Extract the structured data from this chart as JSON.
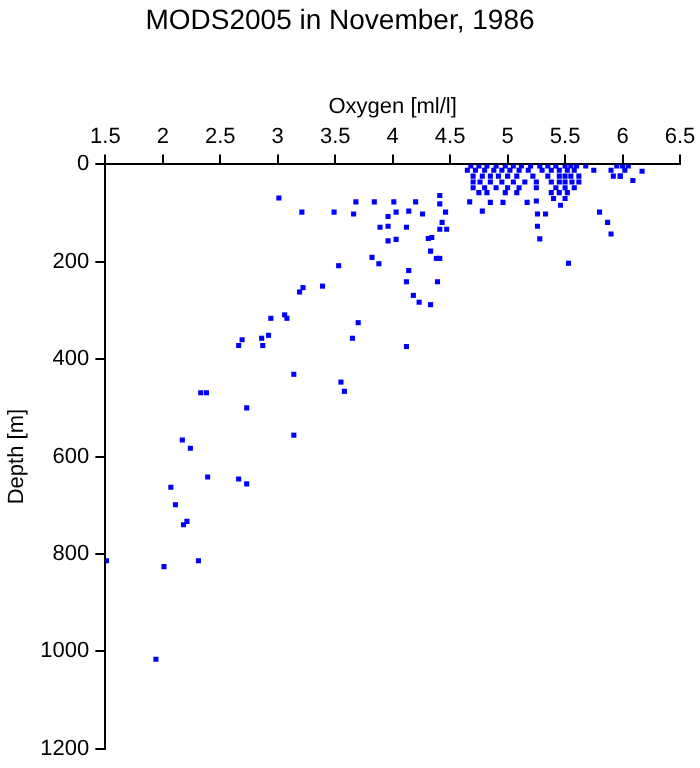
{
  "chart_data": {
    "type": "scatter",
    "title": "MODS2005 in November, 1986",
    "xlabel": "Oxygen [ml/l]",
    "ylabel": "Depth [m]",
    "xlim": [
      1.5,
      6.5
    ],
    "xticks": [
      1.5,
      2,
      2.5,
      3,
      3.5,
      4,
      4.5,
      5,
      5.5,
      6,
      6.5
    ],
    "ylim": [
      1200,
      0
    ],
    "yticks": [
      0,
      200,
      400,
      600,
      800,
      1000,
      1200
    ],
    "grid": false,
    "marker": "square",
    "legend": false,
    "series": [
      {
        "color": "#0000ff",
        "x": [
          3.01,
          3.21,
          3.49,
          3.53,
          3.39,
          3.22,
          3.19,
          2.94,
          3.06,
          3.08,
          2.92,
          2.86,
          2.69,
          2.66,
          2.87,
          3.14,
          3.55,
          3.58,
          2.33,
          2.38,
          2.73,
          3.14,
          2.17,
          2.24,
          2.07,
          2.11,
          2.39,
          2.66,
          2.73,
          2.18,
          2.21,
          2.31,
          2.01,
          1.51,
          1.94,
          3.68,
          3.84,
          4.01,
          4.2,
          3.66,
          3.96,
          4.03,
          4.14,
          4.26,
          3.89,
          3.96,
          4.12,
          4.41,
          4.41,
          4.43,
          4.46,
          4.47,
          4.41,
          4.34,
          4.31,
          3.96,
          4.03,
          4.33,
          3.82,
          3.88,
          4.38,
          4.41,
          4.14,
          4.12,
          4.18,
          4.23,
          4.33,
          4.39,
          3.7,
          3.65,
          4.12,
          5.26,
          5.33,
          5.26,
          5.28,
          5.53,
          5.8,
          5.87,
          5.9,
          5.46,
          4.85,
          4.78,
          4.67,
          4.96,
          5.17,
          5.25,
          6.09,
          6.17,
          5.98,
          4.68,
          4.75,
          4.82,
          4.9,
          4.98,
          5.05,
          5.12,
          5.2,
          5.28,
          5.35,
          5.42,
          5.5,
          5.55,
          5.6,
          5.68,
          5.95,
          6.0,
          6.05,
          4.65,
          4.72,
          4.8,
          4.88,
          4.95,
          5.02,
          5.1,
          5.18,
          5.3,
          5.38,
          5.45,
          5.52,
          5.58,
          5.75,
          5.9,
          6.02,
          4.7,
          4.78,
          4.85,
          4.92,
          5.0,
          5.08,
          5.22,
          5.35,
          5.45,
          5.5,
          5.55,
          5.62,
          5.92,
          5.98,
          4.7,
          4.76,
          4.85,
          4.95,
          5.05,
          5.15,
          5.25,
          5.38,
          5.45,
          5.5,
          5.56,
          5.62,
          4.7,
          4.8,
          4.9,
          5.0,
          5.1,
          5.25,
          5.42,
          5.5,
          5.58,
          4.75,
          4.82,
          4.98,
          5.08,
          5.38,
          5.45,
          5.52,
          5.4,
          5.5
        ],
        "values": [
          69,
          98,
          98,
          208,
          250,
          253,
          262,
          316,
          309,
          316,
          351,
          357,
          360,
          372,
          372,
          431,
          447,
          466,
          469,
          469,
          500,
          556,
          566,
          583,
          663,
          699,
          642,
          646,
          656,
          740,
          733,
          814,
          826,
          814,
          1016,
          77,
          77,
          77,
          77,
          102,
          107,
          98,
          96,
          102,
          129,
          127,
          129,
          64,
          81,
          119,
          98,
          133,
          133,
          150,
          152,
          157,
          154,
          178,
          191,
          204,
          193,
          193,
          218,
          241,
          269,
          283,
          288,
          241,
          325,
          357,
          374,
          102,
          102,
          127,
          153,
          203,
          98,
          119,
          143,
          84,
          78,
          96,
          77,
          78,
          78,
          75,
          33,
          14,
          24,
          3,
          3,
          3,
          3,
          3,
          3,
          3,
          3,
          3,
          3,
          3,
          3,
          3,
          3,
          3,
          3,
          3,
          3,
          12,
          12,
          12,
          12,
          12,
          12,
          12,
          12,
          12,
          12,
          12,
          12,
          12,
          12,
          12,
          12,
          24,
          24,
          24,
          24,
          24,
          24,
          24,
          24,
          24,
          24,
          24,
          24,
          24,
          24,
          36,
          36,
          36,
          36,
          36,
          36,
          36,
          36,
          36,
          36,
          36,
          36,
          48,
          48,
          48,
          48,
          48,
          48,
          48,
          48,
          48,
          58,
          58,
          58,
          58,
          58,
          58,
          58,
          70,
          70
        ]
      }
    ]
  }
}
